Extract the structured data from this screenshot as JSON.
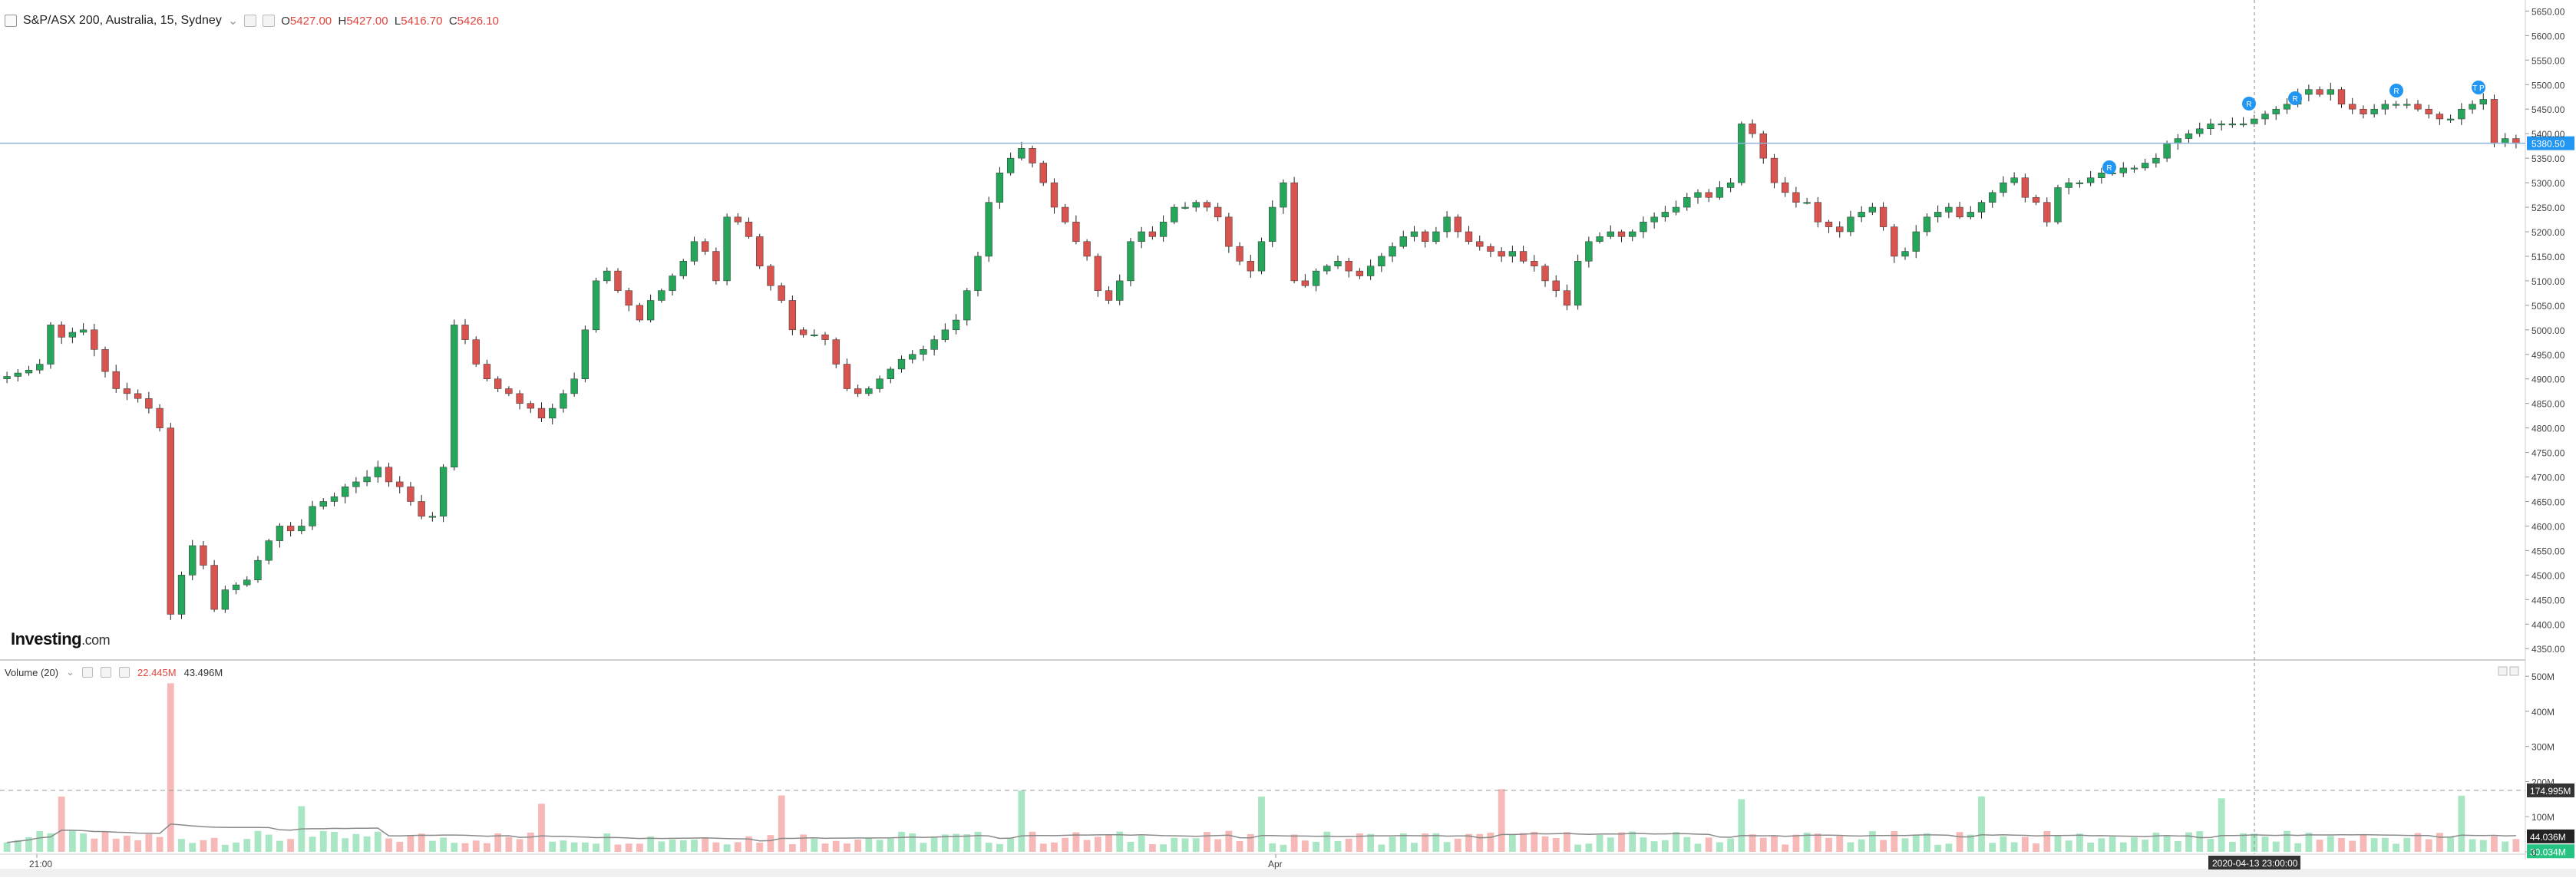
{
  "header": {
    "symbol_title": "S&P/ASX 200, Australia, 15, Sydney",
    "caret": "⌄",
    "open_key": "O",
    "open_val": "5427.00",
    "high_key": "H",
    "high_val": "5427.00",
    "low_key": "L",
    "low_val": "5416.70",
    "close_key": "C",
    "close_val": "5426.10"
  },
  "volume_header": {
    "label": "Volume (20)",
    "caret": "⌄",
    "value_1": "22.445M",
    "value_2": "43.496M"
  },
  "logo": {
    "main": "Investing",
    "suffix": ".com"
  },
  "price_axis": {
    "ticks": [
      "5650.00",
      "5600.00",
      "5550.00",
      "5500.00",
      "5450.00",
      "5400.00",
      "5350.00",
      "5300.00",
      "5250.00",
      "5200.00",
      "5150.00",
      "5100.00",
      "5050.00",
      "5000.00",
      "4950.00",
      "4900.00",
      "4850.00",
      "4800.00",
      "4750.00",
      "4700.00",
      "4650.00",
      "4600.00",
      "4550.00",
      "4500.00",
      "4450.00",
      "4400.00",
      "4350.00"
    ],
    "current_price_label": "5380.50",
    "current_price": 5380.5
  },
  "volume_axis": {
    "ticks": [
      "500M",
      "400M",
      "300M",
      "200M",
      "100M",
      "0"
    ],
    "marker_1": "174.995M",
    "marker_2": "44.036M",
    "marker_3": "30.034M",
    "marker_1_value": 174.995
  },
  "time_axis": {
    "labels": [
      "21:00",
      "Apr"
    ],
    "crosshair_label": "2020-04-13 23:00:00"
  },
  "event_markers": [
    "R",
    "R",
    "R",
    "R",
    "T P"
  ],
  "colors": {
    "up": "#26a65b",
    "down": "#d9534f",
    "vol_up": "#a8e6c4",
    "vol_down": "#f7b9b7",
    "price_line": "#8fb3d8",
    "badge": "#2196f3"
  },
  "chart_data": {
    "type": "candlestick",
    "title": "S&P/ASX 200, Australia, 15, Sydney",
    "ylim": [
      4330,
      5660
    ],
    "volume_ylim": [
      0,
      520
    ],
    "volume_avg_level": 174.995,
    "close": [
      4905,
      4912,
      4918,
      4930,
      5010,
      4985,
      4995,
      5000,
      4960,
      4915,
      4880,
      4870,
      4860,
      4840,
      4800,
      4420,
      4500,
      4560,
      4520,
      4430,
      4470,
      4480,
      4490,
      4530,
      4570,
      4600,
      4590,
      4600,
      4640,
      4650,
      4660,
      4680,
      4690,
      4700,
      4720,
      4690,
      4680,
      4650,
      4620,
      4620,
      4720,
      5010,
      4980,
      4930,
      4900,
      4880,
      4870,
      4850,
      4840,
      4820,
      4840,
      4870,
      4900,
      5000,
      5100,
      5120,
      5080,
      5050,
      5020,
      5060,
      5080,
      5110,
      5140,
      5180,
      5160,
      5100,
      5230,
      5220,
      5190,
      5130,
      5090,
      5060,
      5000,
      4990,
      4990,
      4980,
      4930,
      4880,
      4870,
      4880,
      4900,
      4920,
      4940,
      4950,
      4960,
      4980,
      5000,
      5020,
      5080,
      5150,
      5260,
      5320,
      5350,
      5370,
      5340,
      5300,
      5250,
      5220,
      5180,
      5150,
      5080,
      5060,
      5100,
      5180,
      5200,
      5190,
      5220,
      5250,
      5250,
      5260,
      5250,
      5230,
      5170,
      5140,
      5120,
      5180,
      5250,
      5300,
      5100,
      5090,
      5120,
      5130,
      5140,
      5120,
      5110,
      5130,
      5150,
      5170,
      5190,
      5200,
      5180,
      5200,
      5230,
      5200,
      5180,
      5170,
      5160,
      5150,
      5160,
      5140,
      5130,
      5100,
      5080,
      5050,
      5140,
      5180,
      5190,
      5200,
      5190,
      5200,
      5220,
      5230,
      5240,
      5250,
      5270,
      5280,
      5270,
      5290,
      5300,
      5420,
      5400,
      5350,
      5300,
      5280,
      5260,
      5260,
      5220,
      5210,
      5200,
      5230,
      5240,
      5250,
      5210,
      5150,
      5160,
      5200,
      5230,
      5240,
      5250,
      5230,
      5240,
      5260,
      5280,
      5300,
      5310,
      5270,
      5260,
      5220,
      5290,
      5300,
      5300,
      5310,
      5320,
      5320,
      5330,
      5330,
      5340,
      5350,
      5380,
      5390,
      5400,
      5410,
      5420,
      5420,
      5420,
      5420,
      5430,
      5440,
      5450,
      5460,
      5480,
      5490,
      5480,
      5490,
      5460,
      5450,
      5440,
      5450,
      5460,
      5460,
      5460,
      5450,
      5440,
      5430,
      5430,
      5450,
      5460,
      5470,
      5380,
      5390,
      5380
    ]
  }
}
